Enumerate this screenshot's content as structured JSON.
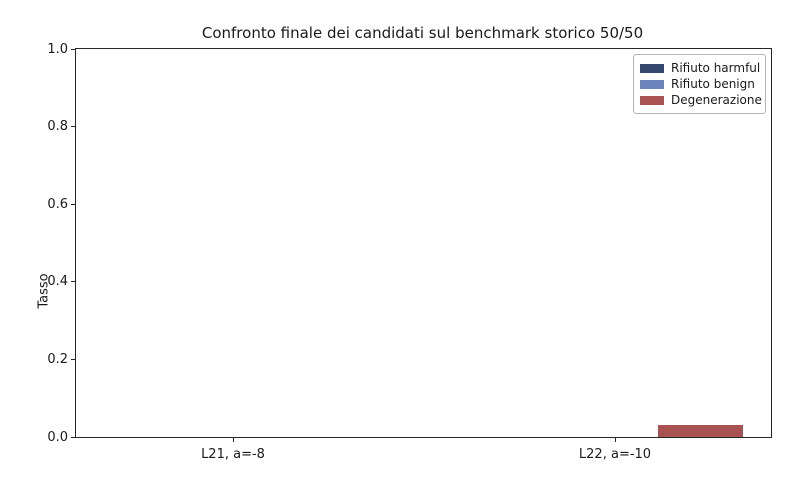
{
  "chart_data": {
    "type": "bar",
    "title": "Confronto finale dei candidati sul benchmark storico 50/50",
    "xlabel": "",
    "ylabel": "Tasso",
    "categories": [
      "L21, a=-8",
      "L22, a=-10"
    ],
    "series": [
      {
        "name": "Rifiuto harmful",
        "color": "#34486e",
        "values": [
          0.0,
          0.0
        ]
      },
      {
        "name": "Rifiuto benign",
        "color": "#6b84be",
        "values": [
          0.0,
          0.0
        ]
      },
      {
        "name": "Degenerazione",
        "color": "#a85252",
        "values": [
          0.0,
          0.03
        ]
      }
    ],
    "ylim": [
      0.0,
      1.0
    ],
    "yticks": [
      0.0,
      0.2,
      0.4,
      0.6,
      0.8,
      1.0
    ],
    "ytick_labels": [
      "0.0",
      "0.2",
      "0.4",
      "0.6",
      "0.8",
      "1.0"
    ],
    "legend_position": "upper right",
    "grid": false
  }
}
